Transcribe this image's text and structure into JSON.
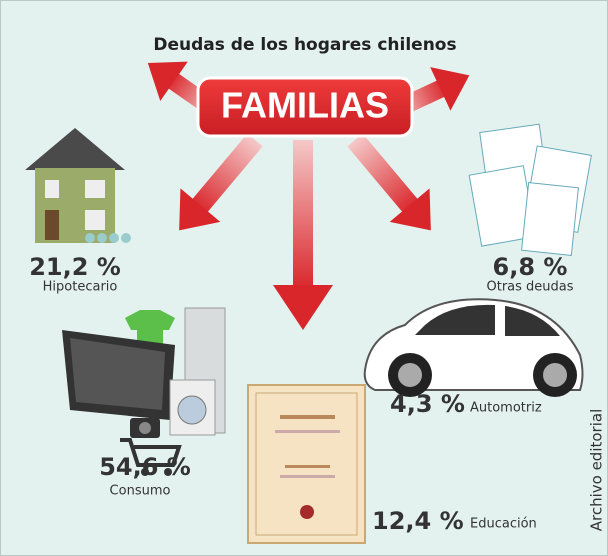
{
  "title": "Deudas de los hogares chilenos",
  "center": "FAMILIAS",
  "items": [
    {
      "value": "21,2 %",
      "label": "Hipotecario"
    },
    {
      "value": "6,8 %",
      "label": "Otras deudas"
    },
    {
      "value": "4,3 %",
      "label": "Automotriz"
    },
    {
      "value": "54,6 %",
      "label": "Consumo"
    },
    {
      "value": "12,4 %",
      "label": "Educación"
    }
  ],
  "credit": "Archivo editorial"
}
